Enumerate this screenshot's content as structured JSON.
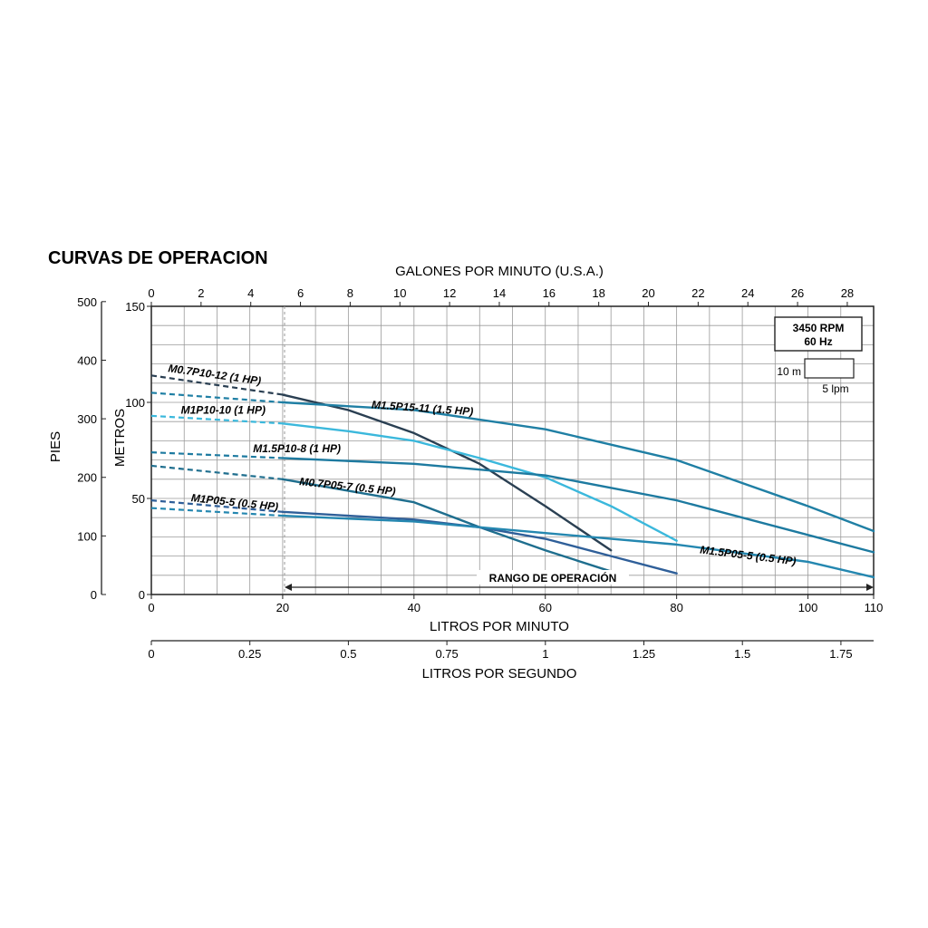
{
  "chart_data": {
    "type": "line",
    "title": "CURVAS DE OPERACION",
    "x_axis_bottom": {
      "label": "LITROS POR MINUTO",
      "range": [
        0,
        110
      ],
      "ticks": [
        0,
        20,
        40,
        60,
        80,
        100,
        110
      ]
    },
    "x_axis_top": {
      "label": "GALONES POR MINUTO (U.S.A.)",
      "range": [
        0,
        29.06
      ],
      "ticks": [
        0,
        2,
        4,
        6,
        8,
        10,
        12,
        14,
        16,
        18,
        20,
        22,
        24,
        26,
        28
      ]
    },
    "x_axis_second": {
      "label": "LITROS POR SEGUNDO",
      "range": [
        0,
        1.833
      ],
      "ticks": [
        "0",
        "0.25",
        "0.5",
        "0.75",
        "1",
        "1.25",
        "1.5",
        "1.75"
      ]
    },
    "y_axis_left": {
      "label": "METROS",
      "range": [
        0,
        150
      ],
      "ticks": [
        0,
        50,
        100,
        150
      ]
    },
    "y_axis_outer": {
      "label": "PIES",
      "range": [
        0,
        492
      ],
      "ticks": [
        0,
        100,
        200,
        300,
        400,
        500
      ]
    },
    "grid": true,
    "operating_range": {
      "label": "RANGO DE OPERACIÓN",
      "from": 20,
      "to": 110
    },
    "info_box": {
      "rpm": "3450 RPM",
      "hz": "60 Hz",
      "scale_height": "10 m",
      "scale_width": "5 lpm"
    },
    "series": [
      {
        "name": "M0.7P10-12 (1 HP)",
        "color": "#2a3f52",
        "dashed_x": [
          0,
          20
        ],
        "dashed_y": [
          114,
          104
        ],
        "x": [
          20,
          30,
          40,
          50,
          60,
          70
        ],
        "y": [
          104,
          96,
          84,
          68,
          46,
          23
        ]
      },
      {
        "name": "M1.5P15-11 (1.5 HP)",
        "color": "#1f7fa4",
        "dashed_x": [
          0,
          20
        ],
        "dashed_y": [
          105,
          100
        ],
        "x": [
          20,
          40,
          60,
          80,
          100,
          110
        ],
        "y": [
          100,
          96,
          86,
          70,
          46,
          33
        ]
      },
      {
        "name": "M1P10-10 (1 HP)",
        "color": "#3bb8dc",
        "dashed_x": [
          0,
          20
        ],
        "dashed_y": [
          93,
          89
        ],
        "x": [
          20,
          30,
          40,
          50,
          60,
          70,
          80
        ],
        "y": [
          89,
          85,
          80,
          71,
          61,
          46,
          28
        ]
      },
      {
        "name": "M1.5P10-8 (1 HP)",
        "color": "#1d7aa0",
        "dashed_x": [
          0,
          20
        ],
        "dashed_y": [
          74,
          71
        ],
        "x": [
          20,
          40,
          60,
          80,
          100,
          110
        ],
        "y": [
          71,
          68,
          62,
          49,
          31,
          22
        ]
      },
      {
        "name": "M0.7P05-7 (0.5 HP)",
        "color": "#1e6e8e",
        "dashed_x": [
          0,
          20
        ],
        "dashed_y": [
          67,
          60
        ],
        "x": [
          20,
          30,
          40,
          50,
          60,
          70
        ],
        "y": [
          60,
          54,
          48,
          35,
          23,
          12
        ]
      },
      {
        "name": "M1P05-5 (0.5 HP)",
        "color": "#2f5f99",
        "dashed_x": [
          0,
          20
        ],
        "dashed_y": [
          49,
          43
        ],
        "x": [
          20,
          30,
          40,
          50,
          60,
          70,
          80
        ],
        "y": [
          43,
          41,
          39,
          35,
          29,
          20,
          11
        ]
      },
      {
        "name": "M1.5P05-5 (0.5 HP)",
        "color": "#2487b0",
        "dashed_x": [
          0,
          20
        ],
        "dashed_y": [
          45,
          41
        ],
        "x": [
          20,
          40,
          60,
          80,
          100,
          110
        ],
        "y": [
          41,
          38,
          32,
          26,
          17,
          9
        ]
      }
    ],
    "labels": [
      {
        "text": "M0.7P10-12 (1 HP)",
        "x": 2.5,
        "y": 116,
        "rot": 8
      },
      {
        "text": "M1.5P15-11 (1.5 HP)",
        "x": 33.5,
        "y": 97,
        "rot": 4
      },
      {
        "text": "M1P10-10 (1 HP)",
        "x": 4.5,
        "y": 94,
        "rot": 0
      },
      {
        "text": "M1.5P10-8 (1 HP)",
        "x": 15.5,
        "y": 74,
        "rot": 0
      },
      {
        "text": "M0.7P05-7 (0.5 HP)",
        "x": 22.5,
        "y": 57,
        "rot": 6
      },
      {
        "text": "M1P05-5 (0.5 HP)",
        "x": 6,
        "y": 48.5,
        "rot": 6
      },
      {
        "text": "M1.5P05-5 (0.5 HP)",
        "x": 83.5,
        "y": 21.5,
        "rot": 7
      }
    ]
  }
}
